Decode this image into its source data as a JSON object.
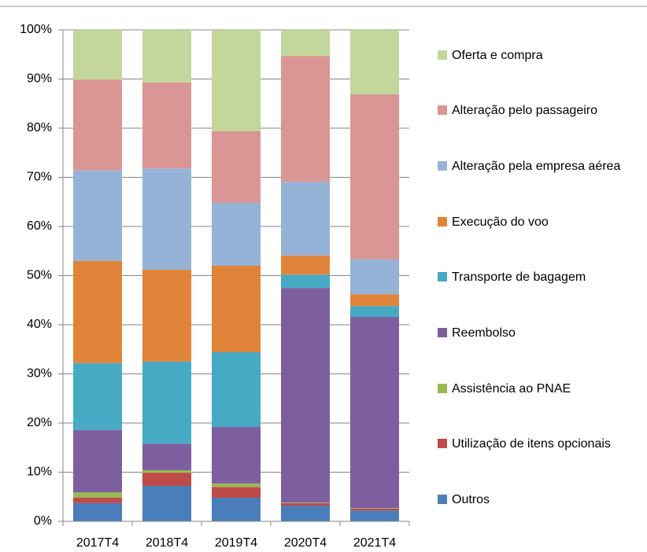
{
  "chart_data": {
    "type": "stacked_bar_100",
    "categories": [
      "2017T4",
      "2018T4",
      "2019T4",
      "2020T4",
      "2021T4"
    ],
    "series": [
      {
        "name": "Outros",
        "color": "#4a7ebb",
        "values": [
          3.7,
          7.2,
          4.8,
          3.2,
          2.2
        ]
      },
      {
        "name": "Utilização de itens opcionais",
        "color": "#be4b48",
        "values": [
          1.1,
          2.7,
          2.2,
          0.5,
          0.4
        ]
      },
      {
        "name": "Assistência ao PNAE",
        "color": "#98b954",
        "values": [
          1.1,
          0.5,
          0.7,
          0.1,
          0.1
        ]
      },
      {
        "name": "Reembolso",
        "color": "#7d5fa0",
        "values": [
          12.7,
          5.4,
          11.5,
          43.7,
          38.9
        ]
      },
      {
        "name": "Transporte de bagagem",
        "color": "#46aac5",
        "values": [
          13.6,
          16.7,
          15.2,
          2.7,
          2.2
        ]
      },
      {
        "name": "Execução do voo",
        "color": "#e0843a",
        "values": [
          20.8,
          18.7,
          17.6,
          3.9,
          2.4
        ]
      },
      {
        "name": "Alteração pela empresa aérea",
        "color": "#95b3d7",
        "values": [
          18.4,
          20.6,
          12.8,
          15.0,
          7.1
        ]
      },
      {
        "name": "Alteração pelo passageiro",
        "color": "#d99694",
        "values": [
          18.5,
          17.5,
          14.6,
          25.6,
          33.6
        ]
      },
      {
        "name": "Oferta e compra",
        "color": "#c3d69b",
        "values": [
          10.1,
          10.7,
          20.6,
          5.3,
          13.1
        ]
      }
    ],
    "ylim": [
      0,
      100
    ],
    "yticks": [
      {
        "value": 0,
        "label": "0%"
      },
      {
        "value": 10,
        "label": "10%"
      },
      {
        "value": 20,
        "label": "20%"
      },
      {
        "value": 30,
        "label": "30%"
      },
      {
        "value": 40,
        "label": "40%"
      },
      {
        "value": 50,
        "label": "50%"
      },
      {
        "value": 60,
        "label": "60%"
      },
      {
        "value": 70,
        "label": "70%"
      },
      {
        "value": 80,
        "label": "80%"
      },
      {
        "value": 90,
        "label": "90%"
      },
      {
        "value": 100,
        "label": "100%"
      }
    ],
    "grid": true,
    "legend": "right"
  }
}
